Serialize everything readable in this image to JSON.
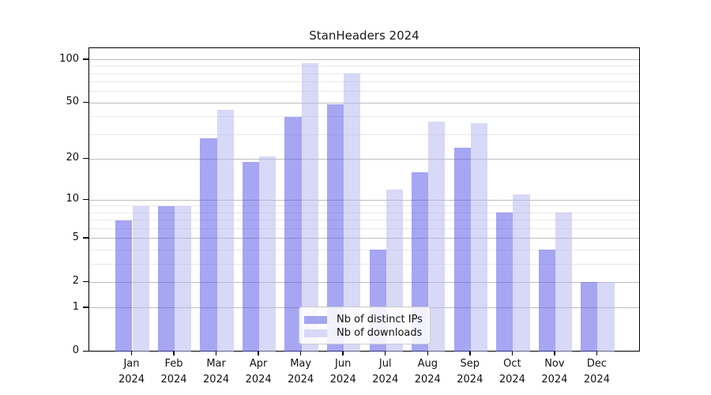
{
  "title": "StanHeaders 2024",
  "y_axis": {
    "tick_labels_top_to_bottom": [
      "100",
      "50",
      "20",
      "10",
      "5",
      "2",
      "1",
      "0"
    ],
    "major_ticks": [
      0,
      1,
      2,
      5,
      10,
      20,
      50,
      100
    ],
    "minor_gridlines": [
      3,
      4,
      6,
      7,
      8,
      9,
      30,
      40,
      60,
      70,
      80,
      90
    ]
  },
  "x_axis": {
    "months": [
      "Jan",
      "Feb",
      "Mar",
      "Apr",
      "May",
      "Jun",
      "Jul",
      "Aug",
      "Sep",
      "Oct",
      "Nov",
      "Dec"
    ],
    "year": "2024"
  },
  "legend": {
    "items": [
      {
        "label": "Nb of distinct IPs",
        "swatch_color": "#a5a5f0"
      },
      {
        "label": "Nb of downloads",
        "swatch_color": "#d8d8f7"
      }
    ]
  },
  "colors": {
    "bar_distinct_ips": "rgba(93,93,231,0.55)",
    "bar_downloads": "rgba(184,184,241,0.55)",
    "major_gridline": "#bdbdbd",
    "minor_gridline": "#e9e9e9",
    "spine": "#000000",
    "background": "#ffffff"
  },
  "chart_data": {
    "type": "bar",
    "title": "StanHeaders 2024",
    "categories": [
      "Jan 2024",
      "Feb 2024",
      "Mar 2024",
      "Apr 2024",
      "May 2024",
      "Jun 2024",
      "Jul 2024",
      "Aug 2024",
      "Sep 2024",
      "Oct 2024",
      "Nov 2024",
      "Dec 2024"
    ],
    "series": [
      {
        "name": "Nb of distinct IPs",
        "values": [
          7,
          9,
          28,
          19,
          40,
          49,
          4,
          16,
          24,
          8,
          4,
          2
        ]
      },
      {
        "name": "Nb of downloads",
        "values": [
          9,
          9,
          45,
          21,
          95,
          80,
          12,
          37,
          36,
          11,
          8,
          2
        ]
      }
    ],
    "xlabel": "",
    "ylabel": "",
    "y_scale": "log1p",
    "yticks": [
      0,
      1,
      2,
      5,
      10,
      20,
      50,
      100
    ],
    "ylim_top": 120,
    "grid": true,
    "legend_position": "lower center"
  }
}
